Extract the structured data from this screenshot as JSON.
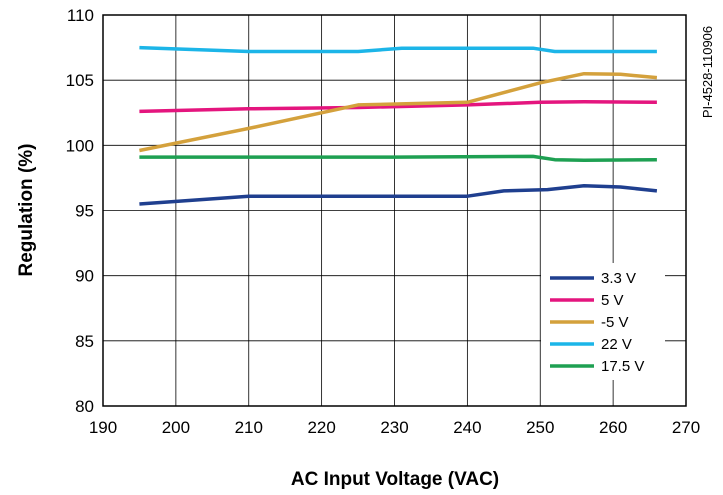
{
  "chart_data": {
    "type": "line",
    "title": "",
    "xlabel": "AC Input Voltage (VAC)",
    "ylabel": "Regulation (%)",
    "xlim": [
      190,
      270
    ],
    "ylim": [
      80,
      110
    ],
    "xticks": [
      190,
      200,
      210,
      220,
      230,
      240,
      250,
      260,
      270
    ],
    "yticks": [
      80,
      85,
      90,
      95,
      100,
      105,
      110
    ],
    "grid": true,
    "legend_position": "bottom-right",
    "figure_id": "PI-4528-110906",
    "series": [
      {
        "name": "3.3 V",
        "color": "#1f3f8f",
        "points": [
          [
            195,
            95.5
          ],
          [
            210,
            96.1
          ],
          [
            220,
            96.1
          ],
          [
            230,
            96.1
          ],
          [
            240,
            96.1
          ],
          [
            245,
            96.5
          ],
          [
            251,
            96.6
          ],
          [
            256,
            96.9
          ],
          [
            261,
            96.8
          ],
          [
            266,
            96.5
          ]
        ]
      },
      {
        "name": "5 V",
        "color": "#e4157e",
        "points": [
          [
            195,
            102.6
          ],
          [
            210,
            102.8
          ],
          [
            225,
            102.9
          ],
          [
            240,
            103.1
          ],
          [
            250,
            103.3
          ],
          [
            256,
            103.35
          ],
          [
            266,
            103.3
          ]
        ]
      },
      {
        "name": "-5 V",
        "color": "#d4a13c",
        "points": [
          [
            195,
            99.6
          ],
          [
            210,
            101.3
          ],
          [
            225,
            103.1
          ],
          [
            240,
            103.3
          ],
          [
            250,
            104.8
          ],
          [
            256,
            105.5
          ],
          [
            261,
            105.45
          ],
          [
            266,
            105.2
          ]
        ]
      },
      {
        "name": "22 V",
        "color": "#1cb5e8",
        "points": [
          [
            195,
            107.5
          ],
          [
            210,
            107.2
          ],
          [
            225,
            107.2
          ],
          [
            231,
            107.45
          ],
          [
            249,
            107.45
          ],
          [
            252,
            107.2
          ],
          [
            266,
            107.2
          ]
        ]
      },
      {
        "name": "17.5 V",
        "color": "#1ea052",
        "points": [
          [
            195,
            99.1
          ],
          [
            210,
            99.1
          ],
          [
            230,
            99.1
          ],
          [
            249,
            99.15
          ],
          [
            252,
            98.9
          ],
          [
            256,
            98.85
          ],
          [
            266,
            98.9
          ]
        ]
      }
    ]
  }
}
